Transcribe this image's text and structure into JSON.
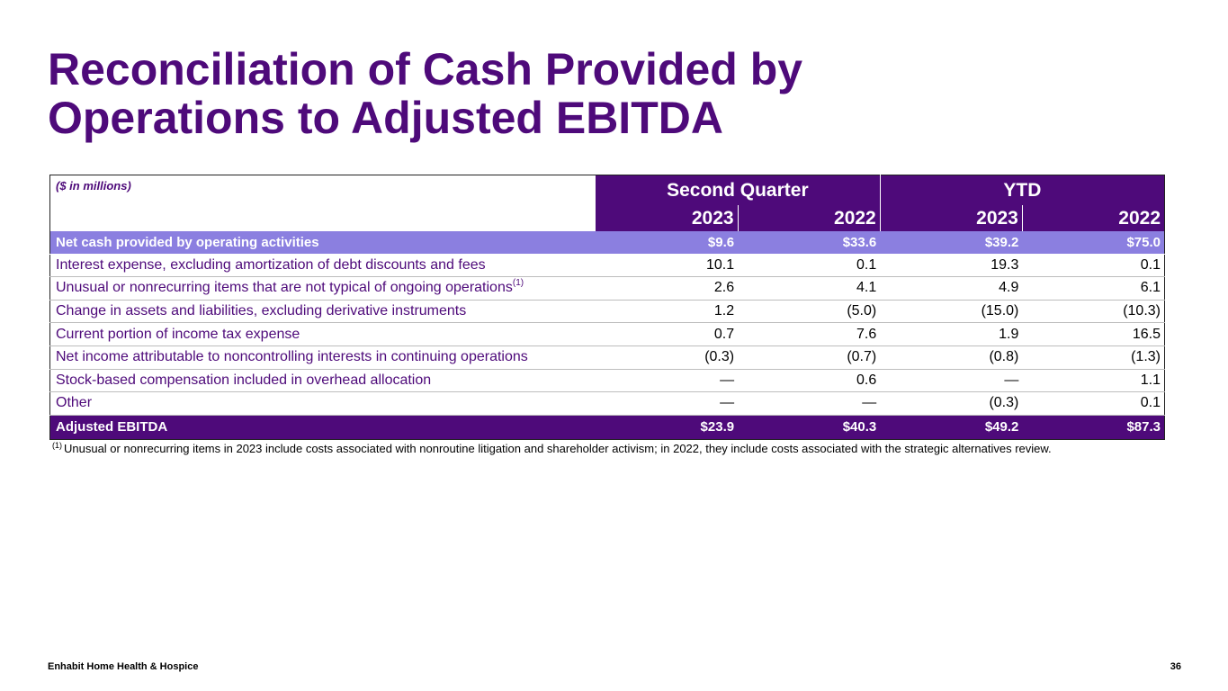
{
  "title": {
    "line1": "Reconciliation of Cash Provided by",
    "line2": "Operations to Adjusted EBITDA"
  },
  "table": {
    "unit_label": "($ in millions)",
    "groups": [
      "Second Quarter",
      "YTD"
    ],
    "years": [
      "2023",
      "2022",
      "2023",
      "2022"
    ],
    "rows": [
      {
        "label": "Net cash provided by operating activities",
        "sup": "",
        "values": [
          "$9.6",
          "$33.6",
          "$39.2",
          "$75.0"
        ]
      },
      {
        "label": "Interest expense, excluding amortization of debt discounts and fees",
        "sup": "",
        "values": [
          "10.1",
          "0.1",
          "19.3",
          "0.1"
        ]
      },
      {
        "label": "Unusual or nonrecurring items that are not typical of ongoing operations",
        "sup": "(1)",
        "values": [
          "2.6",
          "4.1",
          "4.9",
          "6.1"
        ]
      },
      {
        "label": "Change in assets and liabilities, excluding derivative instruments",
        "sup": "",
        "values": [
          "1.2",
          "(5.0)",
          "(15.0)",
          "(10.3)"
        ]
      },
      {
        "label": "Current portion of income tax expense",
        "sup": "",
        "values": [
          "0.7",
          "7.6",
          "1.9",
          "16.5"
        ]
      },
      {
        "label": "Net income attributable to noncontrolling interests in continuing operations",
        "sup": "",
        "values": [
          "(0.3)",
          "(0.7)",
          "(0.8)",
          "(1.3)"
        ]
      },
      {
        "label": "Stock-based compensation included in overhead allocation",
        "sup": "",
        "values": [
          "—",
          "0.6",
          "—",
          "1.1"
        ]
      },
      {
        "label": "Other",
        "sup": "",
        "values": [
          "—",
          "—",
          "(0.3)",
          "0.1"
        ]
      },
      {
        "label": "Adjusted EBITDA",
        "sup": "",
        "values": [
          "$23.9",
          "$40.3",
          "$49.2",
          "$87.3"
        ]
      }
    ]
  },
  "footnote": {
    "marker": "(1)",
    "text": "Unusual or nonrecurring items in 2023 include costs associated with nonroutine litigation and shareholder activism; in 2022, they include costs associated with the strategic alternatives review."
  },
  "footer": {
    "company": "Enhabit Home Health & Hospice",
    "page_number": "36"
  },
  "colors": {
    "brand_purple": "#4e0a7a",
    "highlight_lavender": "#8b7fe0"
  }
}
